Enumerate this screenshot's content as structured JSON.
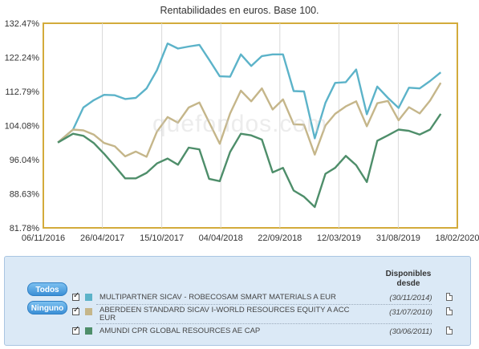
{
  "chart_data": {
    "type": "line",
    "title": "Rentabilidades en euros. Base 100.",
    "watermark": "quefondos.com",
    "y_ticks": [
      "132.47%",
      "122.24%",
      "112.79%",
      "104.08%",
      "96.04%",
      "88.63%",
      "81.78%"
    ],
    "y_tick_values": [
      132.47,
      122.24,
      112.79,
      104.08,
      96.04,
      88.63,
      81.78
    ],
    "ylim": [
      81.78,
      132.47
    ],
    "y_scale": "log",
    "x_ticks": [
      "06/11/2016",
      "26/04/2017",
      "15/10/2017",
      "04/04/2018",
      "22/09/2018",
      "12/03/2019",
      "31/08/2019",
      "18/02/2020"
    ],
    "xlim": [
      "2016-11-06",
      "2020-02-18"
    ],
    "grid": "vertical",
    "series": [
      {
        "name": "MULTIPARTNER SICAV - ROBECOSAM SMART MATERIALS A EUR",
        "color": "#5cb3c9",
        "x": [
          "2016-12-18",
          "2017-01-31",
          "2017-03-02",
          "2017-04-01",
          "2017-05-01",
          "2017-06-01",
          "2017-07-01",
          "2017-08-01",
          "2017-09-01",
          "2017-10-01",
          "2017-11-01",
          "2017-12-01",
          "2018-01-01",
          "2018-02-01",
          "2018-03-01",
          "2018-04-01",
          "2018-05-01",
          "2018-06-01",
          "2018-07-01",
          "2018-08-01",
          "2018-09-01",
          "2018-10-01",
          "2018-11-01",
          "2018-12-01",
          "2019-01-01",
          "2019-02-01",
          "2019-03-01",
          "2019-04-01",
          "2019-05-01",
          "2019-06-01",
          "2019-07-01",
          "2019-08-01",
          "2019-09-01",
          "2019-10-01",
          "2019-11-01",
          "2019-12-01",
          "2020-01-01"
        ],
        "values": [
          100.0,
          103.1,
          108.6,
          110.5,
          111.9,
          111.8,
          110.8,
          111.1,
          113.6,
          118.6,
          126.3,
          124.8,
          125.4,
          125.9,
          121.6,
          116.9,
          116.8,
          123.1,
          119.8,
          122.6,
          123.1,
          123.1,
          112.9,
          112.8,
          101.0,
          109.8,
          115.1,
          115.3,
          118.8,
          106.9,
          114.1,
          111.1,
          108.5,
          113.8,
          113.6,
          115.6,
          118.0
        ]
      },
      {
        "name": "ABERDEEN STANDARD SICAV I-WORLD RESOURCES EQUITY A ACC EUR",
        "color": "#c5b68a",
        "x": [
          "2016-12-18",
          "2017-01-31",
          "2017-03-02",
          "2017-04-01",
          "2017-05-01",
          "2017-06-01",
          "2017-07-01",
          "2017-08-01",
          "2017-09-01",
          "2017-10-01",
          "2017-11-01",
          "2017-12-01",
          "2018-01-01",
          "2018-02-01",
          "2018-03-01",
          "2018-04-01",
          "2018-05-01",
          "2018-06-01",
          "2018-07-01",
          "2018-08-01",
          "2018-09-01",
          "2018-10-01",
          "2018-11-01",
          "2018-12-01",
          "2019-01-01",
          "2019-02-01",
          "2019-03-01",
          "2019-04-01",
          "2019-05-01",
          "2019-06-01",
          "2019-07-01",
          "2019-08-01",
          "2019-09-01",
          "2019-10-01",
          "2019-11-01",
          "2019-12-01",
          "2020-01-01"
        ],
        "values": [
          100.0,
          103.1,
          102.9,
          101.9,
          99.9,
          99.1,
          96.8,
          97.9,
          96.7,
          102.6,
          106.2,
          104.8,
          108.6,
          109.9,
          104.9,
          99.7,
          107.1,
          113.0,
          110.2,
          113.6,
          108.1,
          110.7,
          104.4,
          104.3,
          97.2,
          104.1,
          107.0,
          108.9,
          110.2,
          103.9,
          109.7,
          110.3,
          105.4,
          108.7,
          107.1,
          110.4,
          115.1
        ]
      },
      {
        "name": "AMUNDI CPR GLOBAL RESOURCES AE CAP",
        "color": "#4e8e6a",
        "x": [
          "2016-12-18",
          "2017-01-31",
          "2017-03-02",
          "2017-04-01",
          "2017-05-01",
          "2017-06-01",
          "2017-07-01",
          "2017-08-01",
          "2017-09-01",
          "2017-10-01",
          "2017-11-01",
          "2017-12-01",
          "2018-01-01",
          "2018-02-01",
          "2018-03-01",
          "2018-04-01",
          "2018-05-01",
          "2018-06-01",
          "2018-07-01",
          "2018-08-01",
          "2018-09-01",
          "2018-10-01",
          "2018-11-01",
          "2018-12-01",
          "2019-01-01",
          "2019-02-01",
          "2019-03-01",
          "2019-04-01",
          "2019-05-01",
          "2019-06-01",
          "2019-07-01",
          "2019-08-01",
          "2019-09-01",
          "2019-10-01",
          "2019-11-01",
          "2019-12-01",
          "2020-01-01"
        ],
        "values": [
          100.0,
          102.1,
          101.6,
          99.9,
          97.4,
          94.6,
          91.9,
          91.9,
          93.1,
          95.2,
          96.3,
          94.9,
          98.8,
          98.4,
          91.8,
          91.3,
          97.8,
          102.1,
          101.7,
          100.7,
          93.2,
          94.2,
          89.3,
          88.0,
          85.9,
          92.9,
          94.2,
          96.9,
          94.8,
          91.1,
          100.4,
          101.7,
          103.1,
          102.8,
          101.9,
          103.1,
          107.0
        ]
      }
    ]
  },
  "legend": {
    "buttons": {
      "all": "Todos",
      "none": "Ninguno"
    },
    "available_header": "Disponibles desde",
    "funds": [
      {
        "name": "MULTIPARTNER SICAV - ROBECOSAM SMART MATERIALS A EUR",
        "since": "(30/11/2014)",
        "color": "#5cb3c9",
        "checked": true
      },
      {
        "name": "ABERDEEN STANDARD SICAV I-WORLD RESOURCES EQUITY A ACC EUR",
        "since": "(31/07/2010)",
        "color": "#c5b68a",
        "checked": true
      },
      {
        "name": "AMUNDI CPR GLOBAL RESOURCES AE CAP",
        "since": "(30/06/2011)",
        "color": "#4e8e6a",
        "checked": true
      }
    ]
  }
}
